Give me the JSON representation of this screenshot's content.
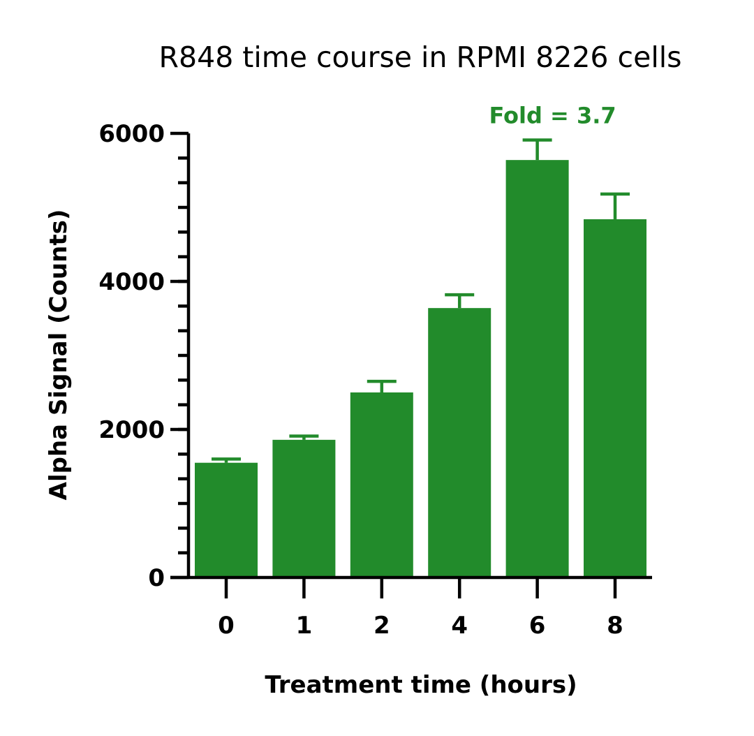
{
  "chart_data": {
    "type": "bar",
    "title": "R848 time course in RPMI 8226 cells",
    "xlabel": "Treatment time (hours)",
    "ylabel": "Alpha Signal (Counts)",
    "categories": [
      "0",
      "1",
      "2",
      "4",
      "6",
      "8"
    ],
    "series": [
      {
        "values": [
          1550,
          1860,
          2500,
          3640,
          5640,
          4840
        ],
        "error_upper": [
          50,
          50,
          150,
          180,
          270,
          340
        ]
      }
    ],
    "ylim": [
      0,
      6000
    ],
    "y_ticks": [
      "0",
      "2000",
      "4000",
      "6000"
    ],
    "y_minor_step": 333.33,
    "grid": false,
    "bar_color": "#228B2B",
    "annotations": [
      {
        "text": "Fold = 3.7",
        "category": "6",
        "color": "#228B2B"
      }
    ]
  }
}
